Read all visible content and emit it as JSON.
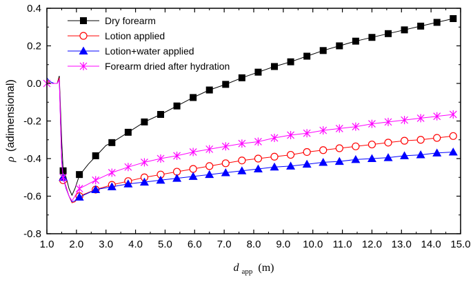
{
  "chart_data": {
    "type": "line",
    "title": "",
    "xlabel": {
      "symbol": "d",
      "subscript": "app",
      "unit": "(m)"
    },
    "ylabel": {
      "symbol": "ρ",
      "text": "(adimensional)"
    },
    "xlim": [
      1.0,
      15.0
    ],
    "ylim": [
      -0.8,
      0.4
    ],
    "xticks": [
      "1.0",
      "2.0",
      "3.0",
      "4.0",
      "5.0",
      "6.0",
      "7.0",
      "8.0",
      "9.0",
      "10.0",
      "11.0",
      "12.0",
      "13.0",
      "14.0",
      "15.0"
    ],
    "yticks": [
      "0.4",
      "0.2",
      "0.0",
      "-0.2",
      "-0.4",
      "-0.6",
      "-0.8"
    ],
    "legend_position": "top-left",
    "series": [
      {
        "name": "Dry forearm",
        "marker": "filled-square",
        "color": "#000000",
        "line": [
          [
            1.0,
            0.02
          ],
          [
            1.1,
            0.0
          ],
          [
            1.25,
            0.0
          ],
          [
            1.35,
            0.0
          ],
          [
            1.42,
            0.04
          ],
          [
            1.5,
            -0.3
          ],
          [
            1.55,
            -0.46
          ],
          [
            1.65,
            -0.5
          ],
          [
            1.75,
            -0.56
          ],
          [
            1.85,
            -0.595
          ],
          [
            1.95,
            -0.56
          ],
          [
            2.1,
            -0.49
          ],
          [
            2.4,
            -0.43
          ],
          [
            2.7,
            -0.38
          ],
          [
            3.0,
            -0.33
          ]
        ],
        "points": [
          [
            1.55,
            -0.465
          ],
          [
            2.1,
            -0.485
          ],
          [
            2.65,
            -0.385
          ],
          [
            3.2,
            -0.315
          ],
          [
            3.75,
            -0.26
          ],
          [
            4.3,
            -0.205
          ],
          [
            4.85,
            -0.165
          ],
          [
            5.4,
            -0.12
          ],
          [
            5.95,
            -0.075
          ],
          [
            6.5,
            -0.035
          ],
          [
            7.05,
            -0.005
          ],
          [
            7.6,
            0.03
          ],
          [
            8.15,
            0.06
          ],
          [
            8.7,
            0.09
          ],
          [
            9.25,
            0.115
          ],
          [
            9.8,
            0.145
          ],
          [
            10.35,
            0.175
          ],
          [
            10.9,
            0.2
          ],
          [
            11.45,
            0.225
          ],
          [
            12.0,
            0.245
          ],
          [
            12.55,
            0.265
          ],
          [
            13.1,
            0.285
          ],
          [
            13.65,
            0.305
          ],
          [
            14.2,
            0.325
          ],
          [
            14.75,
            0.345
          ]
        ]
      },
      {
        "name": "Lotion applied",
        "marker": "open-circle",
        "color": "#ff0000",
        "line": [
          [
            1.0,
            0.02
          ],
          [
            1.1,
            0.0
          ],
          [
            1.25,
            0.0
          ],
          [
            1.35,
            0.0
          ],
          [
            1.42,
            0.03
          ],
          [
            1.5,
            -0.4
          ],
          [
            1.55,
            -0.5
          ],
          [
            1.65,
            -0.55
          ],
          [
            1.75,
            -0.6
          ],
          [
            1.85,
            -0.635
          ],
          [
            1.95,
            -0.63
          ],
          [
            2.1,
            -0.6
          ]
        ],
        "points": [
          [
            1.55,
            -0.515
          ],
          [
            2.1,
            -0.6
          ],
          [
            2.65,
            -0.565
          ],
          [
            3.2,
            -0.54
          ],
          [
            3.75,
            -0.52
          ],
          [
            4.3,
            -0.5
          ],
          [
            4.85,
            -0.485
          ],
          [
            5.4,
            -0.47
          ],
          [
            5.95,
            -0.455
          ],
          [
            6.5,
            -0.44
          ],
          [
            7.05,
            -0.425
          ],
          [
            7.6,
            -0.41
          ],
          [
            8.15,
            -0.4
          ],
          [
            8.7,
            -0.39
          ],
          [
            9.25,
            -0.38
          ],
          [
            9.8,
            -0.365
          ],
          [
            10.35,
            -0.355
          ],
          [
            10.9,
            -0.345
          ],
          [
            11.45,
            -0.335
          ],
          [
            12.0,
            -0.325
          ],
          [
            12.55,
            -0.315
          ],
          [
            13.1,
            -0.305
          ],
          [
            13.65,
            -0.3
          ],
          [
            14.2,
            -0.29
          ],
          [
            14.75,
            -0.28
          ]
        ]
      },
      {
        "name": "Lotion+water applied",
        "marker": "filled-triangle",
        "color": "#0000ff",
        "line": [
          [
            1.0,
            0.03
          ],
          [
            1.1,
            0.01
          ],
          [
            1.25,
            0.0
          ],
          [
            1.35,
            0.0
          ],
          [
            1.42,
            0.02
          ],
          [
            1.5,
            -0.4
          ],
          [
            1.55,
            -0.5
          ],
          [
            1.65,
            -0.56
          ],
          [
            1.75,
            -0.6
          ],
          [
            1.85,
            -0.63
          ],
          [
            1.95,
            -0.625
          ],
          [
            2.1,
            -0.605
          ]
        ],
        "points": [
          [
            1.55,
            -0.5
          ],
          [
            2.1,
            -0.605
          ],
          [
            2.65,
            -0.565
          ],
          [
            3.2,
            -0.55
          ],
          [
            3.75,
            -0.535
          ],
          [
            4.3,
            -0.525
          ],
          [
            4.85,
            -0.515
          ],
          [
            5.4,
            -0.505
          ],
          [
            5.95,
            -0.495
          ],
          [
            6.5,
            -0.485
          ],
          [
            7.05,
            -0.475
          ],
          [
            7.6,
            -0.465
          ],
          [
            8.15,
            -0.455
          ],
          [
            8.7,
            -0.445
          ],
          [
            9.25,
            -0.44
          ],
          [
            9.8,
            -0.43
          ],
          [
            10.35,
            -0.42
          ],
          [
            10.9,
            -0.415
          ],
          [
            11.45,
            -0.405
          ],
          [
            12.0,
            -0.4
          ],
          [
            12.55,
            -0.395
          ],
          [
            13.1,
            -0.385
          ],
          [
            13.65,
            -0.38
          ],
          [
            14.2,
            -0.37
          ],
          [
            14.75,
            -0.365
          ]
        ]
      },
      {
        "name": "Forearm dried after hydration",
        "marker": "star",
        "color": "#ff00ff",
        "line": [
          [
            1.0,
            0.0
          ],
          [
            1.1,
            0.0
          ],
          [
            1.25,
            0.0
          ],
          [
            1.35,
            0.0
          ],
          [
            1.42,
            0.02
          ],
          [
            1.5,
            -0.42
          ],
          [
            1.55,
            -0.5
          ],
          [
            1.65,
            -0.555
          ],
          [
            1.75,
            -0.6
          ],
          [
            1.85,
            -0.625
          ],
          [
            1.95,
            -0.6
          ],
          [
            2.1,
            -0.56
          ]
        ],
        "points": [
          [
            1.0,
            0.0
          ],
          [
            1.55,
            -0.5
          ],
          [
            2.1,
            -0.56
          ],
          [
            2.65,
            -0.515
          ],
          [
            3.2,
            -0.475
          ],
          [
            3.75,
            -0.445
          ],
          [
            4.3,
            -0.42
          ],
          [
            4.85,
            -0.4
          ],
          [
            5.4,
            -0.385
          ],
          [
            5.95,
            -0.365
          ],
          [
            6.5,
            -0.35
          ],
          [
            7.05,
            -0.335
          ],
          [
            7.6,
            -0.32
          ],
          [
            8.15,
            -0.31
          ],
          [
            8.7,
            -0.29
          ],
          [
            9.25,
            -0.275
          ],
          [
            9.8,
            -0.265
          ],
          [
            10.35,
            -0.25
          ],
          [
            10.9,
            -0.24
          ],
          [
            11.45,
            -0.23
          ],
          [
            12.0,
            -0.215
          ],
          [
            12.55,
            -0.205
          ],
          [
            13.1,
            -0.195
          ],
          [
            13.65,
            -0.185
          ],
          [
            14.2,
            -0.175
          ],
          [
            14.75,
            -0.165
          ]
        ]
      }
    ]
  }
}
